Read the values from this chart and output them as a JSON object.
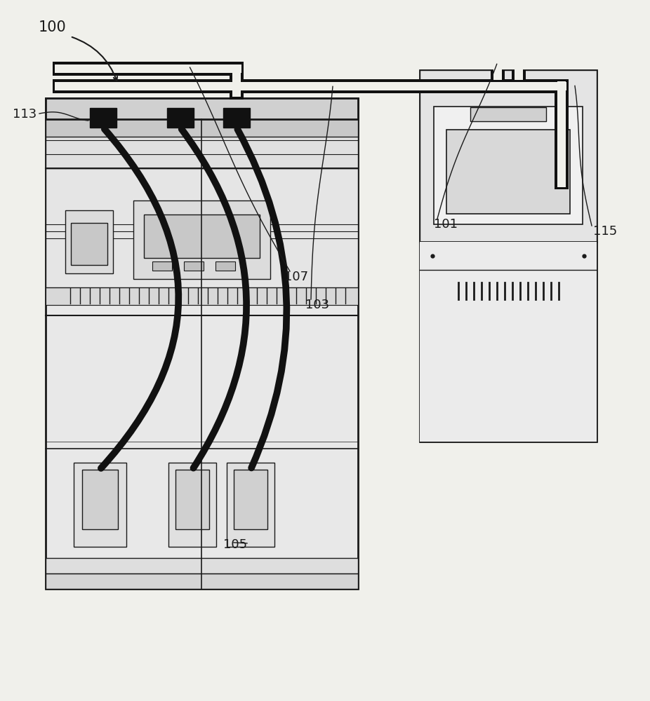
{
  "bg_color": "#f0f0eb",
  "line_color": "#1a1a1a",
  "white": "#f0f0eb",
  "label_100": "100",
  "label_101": "101",
  "label_103": "103",
  "label_105": "105",
  "label_107": "107",
  "label_113": "113",
  "label_115": "115",
  "font_size": 13
}
